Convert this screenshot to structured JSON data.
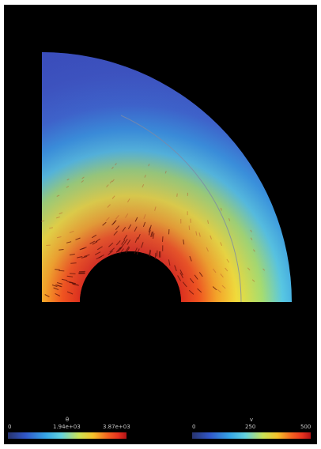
{
  "colors": {
    "background": "#000000",
    "outer_shell": "#3f52c0",
    "colormap_jet": [
      "#28336e",
      "#3158c9",
      "#36a6e6",
      "#63d2df",
      "#cce355",
      "#f5c12b",
      "#f46320",
      "#e7321f",
      "#b01316"
    ]
  },
  "colorbars": [
    {
      "variable": "θ",
      "ticks": [
        "0",
        "1.94e+03",
        "3.87e+03"
      ]
    },
    {
      "variable": "v",
      "ticks": [
        "0",
        "250",
        "500"
      ]
    }
  ]
}
